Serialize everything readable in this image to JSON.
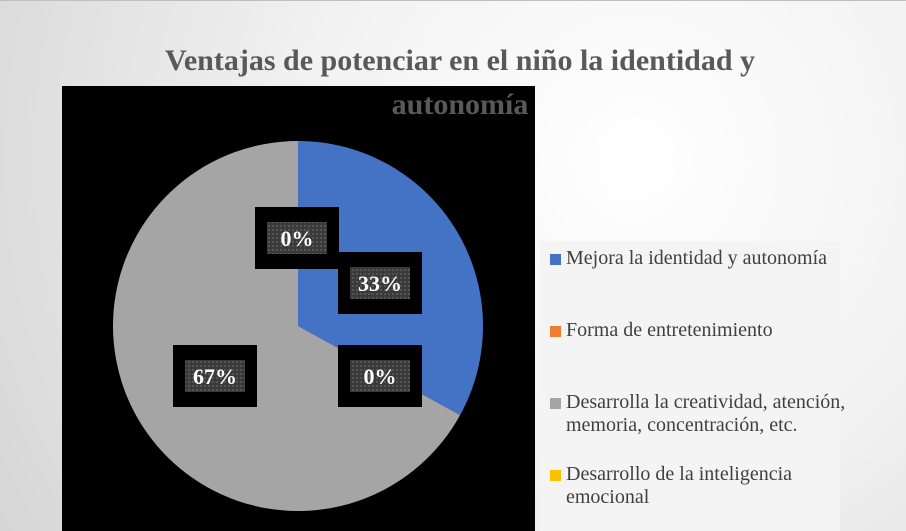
{
  "chart_data": {
    "type": "pie",
    "title": "Ventajas de potenciar en el niño la identidad y autonomía",
    "categories": [
      "Mejora la identidad y autonomía",
      "Forma de entretenimiento",
      "Desarrolla la creatividad, atención, memoria, concentración, etc.",
      "Desarrollo de la inteligencia emocional"
    ],
    "values": [
      33,
      0,
      67,
      0
    ],
    "value_labels": [
      "33%",
      "0%",
      "67%",
      "0%"
    ],
    "colors": [
      "#4472c4",
      "#ed7d31",
      "#a5a5a5",
      "#ffc000"
    ],
    "legend": "right"
  }
}
